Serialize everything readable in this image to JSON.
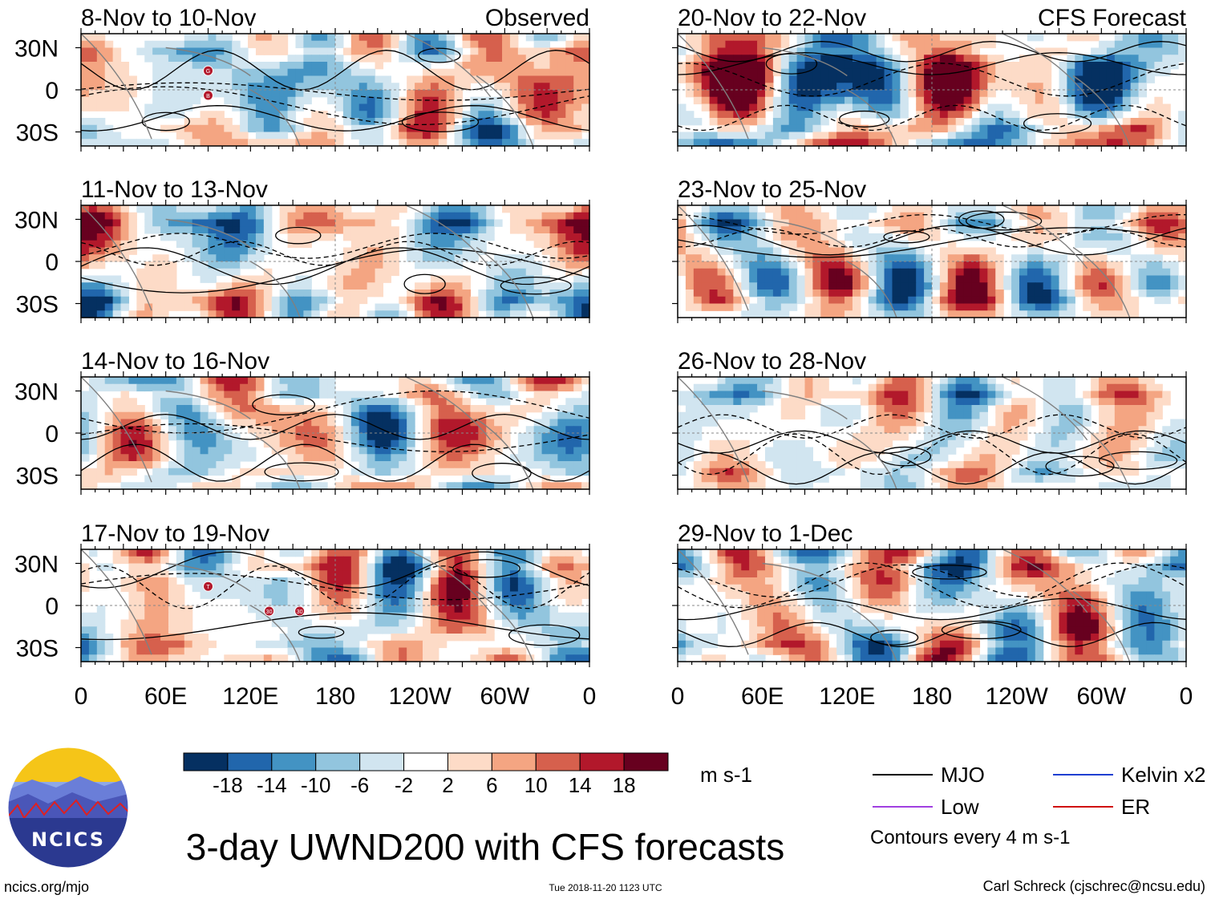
{
  "header": {
    "observed_label": "Observed",
    "forecast_label": "CFS Forecast"
  },
  "panels": [
    {
      "period": "8-Nov to 10-Nov",
      "source": "Observed",
      "column": "left",
      "row": 1,
      "storm_markers": [
        "G",
        "B"
      ]
    },
    {
      "period": "11-Nov to 13-Nov",
      "source": "Observed",
      "column": "left",
      "row": 2,
      "storm_markers": []
    },
    {
      "period": "14-Nov to 16-Nov",
      "source": "Observed",
      "column": "left",
      "row": 3,
      "storm_markers": []
    },
    {
      "period": "17-Nov to 19-Nov",
      "source": "Observed",
      "column": "left",
      "row": 4,
      "storm_markers": [
        "T",
        "30",
        "30"
      ]
    },
    {
      "period": "20-Nov to 22-Nov",
      "source": "CFS Forecast",
      "column": "right",
      "row": 1,
      "storm_markers": []
    },
    {
      "period": "23-Nov to 25-Nov",
      "source": "CFS Forecast",
      "column": "right",
      "row": 2,
      "storm_markers": []
    },
    {
      "period": "26-Nov to 28-Nov",
      "source": "CFS Forecast",
      "column": "right",
      "row": 3,
      "storm_markers": []
    },
    {
      "period": "29-Nov to 1-Dec",
      "source": "CFS Forecast",
      "column": "right",
      "row": 4,
      "storm_markers": []
    }
  ],
  "axes": {
    "y_ticks": [
      "30N",
      "0",
      "30S"
    ],
    "y_values": [
      30,
      0,
      -30
    ],
    "ylim": [
      -40,
      40
    ],
    "x_ticks": [
      "0",
      "60E",
      "120E",
      "180",
      "120W",
      "60W",
      "0"
    ],
    "x_values": [
      0,
      60,
      120,
      180,
      240,
      300,
      360
    ],
    "xlim": [
      0,
      360
    ]
  },
  "colorbar": {
    "levels": [
      "-18",
      "-14",
      "-10",
      "-6",
      "-2",
      "2",
      "6",
      "10",
      "14",
      "18"
    ],
    "colors": [
      "#053061",
      "#2166ac",
      "#4393c3",
      "#92c5de",
      "#d1e5f0",
      "#ffffff",
      "#fddbc7",
      "#f4a582",
      "#d6604d",
      "#b2182b",
      "#67001f"
    ],
    "units": "m s-1"
  },
  "legend": {
    "items": [
      {
        "label": "MJO",
        "color": "#000000"
      },
      {
        "label": "Kelvin x2",
        "color": "#1f3fd1"
      },
      {
        "label": "Low",
        "color": "#a040e0"
      },
      {
        "label": "ER",
        "color": "#d01010"
      }
    ],
    "note": "Contours every 4 m s-1"
  },
  "chart_data": {
    "type": "heatmap",
    "title": "3-day UWND200 with CFS forecasts",
    "variable": "200-hPa zonal wind anomaly",
    "units": "m s-1",
    "xlabel": "",
    "ylabel": "",
    "x_ticks": [
      "0",
      "60E",
      "120E",
      "180",
      "120W",
      "60W",
      "0"
    ],
    "y_ticks": [
      "30N",
      "0",
      "30S"
    ],
    "ylim": [
      -40,
      40
    ],
    "xlim": [
      0,
      360
    ],
    "contour_interval": 4,
    "panels": [
      "8-Nov to 10-Nov",
      "11-Nov to 13-Nov",
      "14-Nov to 16-Nov",
      "17-Nov to 19-Nov",
      "20-Nov to 22-Nov",
      "23-Nov to 25-Nov",
      "26-Nov to 28-Nov",
      "29-Nov to 1-Dec"
    ]
  },
  "footer": {
    "title": "3-day UWND200 with CFS forecasts",
    "url": "ncics.org/mjo",
    "timestamp": "Tue 2018-11-20 1123 UTC",
    "author": "Carl Schreck (cjschrec@ncsu.edu)",
    "logo_text": "NCICS"
  }
}
